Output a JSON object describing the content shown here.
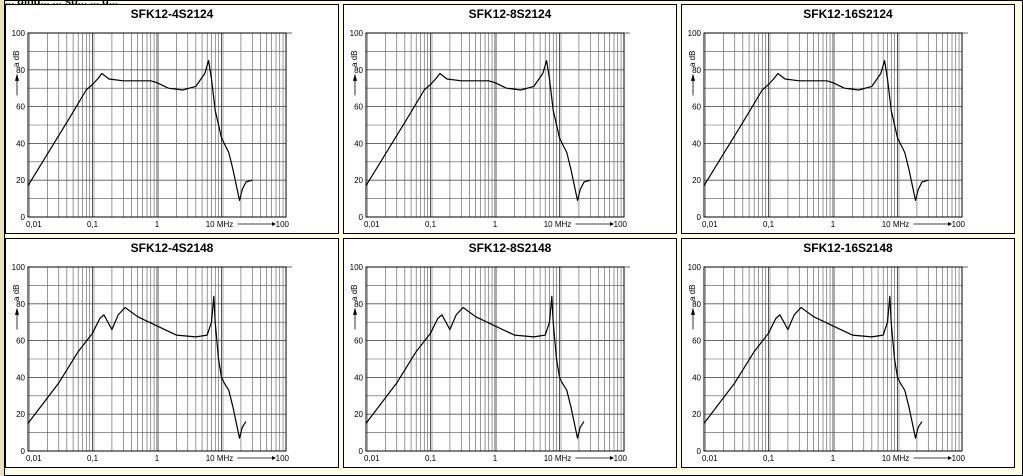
{
  "header_text": "... ging... ... sp... ... g...",
  "chart_data": [
    {
      "type": "line",
      "title": "SFK12-4S2124",
      "ylabel": "a dB",
      "xlabel": "MHz",
      "x_scale": "log",
      "xlim": [
        0.01,
        100
      ],
      "ylim": [
        0,
        100
      ],
      "x_ticks": [
        "0,01",
        "0,1",
        "1",
        "10 MHz",
        "100"
      ],
      "y_ticks": [
        "0",
        "20",
        "40",
        "60",
        "80",
        "100"
      ],
      "series": [
        {
          "x": [
            0.01,
            0.05,
            0.08,
            0.1,
            0.12,
            0.14,
            0.18,
            0.3,
            0.8,
            1.0,
            1.5,
            2.5,
            4.0,
            5.5,
            6.3,
            7.0,
            8.0,
            10.0,
            11.0,
            13.0,
            15.0,
            19.0,
            21.0,
            24.0,
            30.0
          ],
          "y": [
            17,
            57,
            69,
            72,
            75,
            78,
            75,
            74,
            74,
            73,
            70,
            69,
            71,
            78,
            85,
            75,
            58,
            43,
            40,
            35,
            26,
            9,
            15,
            19,
            20
          ]
        }
      ]
    },
    {
      "type": "line",
      "title": "SFK12-8S2124",
      "ylabel": "a dB",
      "xlabel": "MHz",
      "x_scale": "log",
      "xlim": [
        0.01,
        100
      ],
      "ylim": [
        0,
        100
      ],
      "x_ticks": [
        "0,01",
        "0,1",
        "1",
        "10 MHz",
        "100"
      ],
      "y_ticks": [
        "0",
        "20",
        "40",
        "60",
        "80",
        "100"
      ],
      "series": [
        {
          "x": [
            0.01,
            0.05,
            0.08,
            0.1,
            0.12,
            0.14,
            0.18,
            0.3,
            0.8,
            1.0,
            1.5,
            2.5,
            4.0,
            5.5,
            6.3,
            7.0,
            8.0,
            10.0,
            11.0,
            13.0,
            15.0,
            19.0,
            21.0,
            24.0,
            30.0
          ],
          "y": [
            17,
            57,
            69,
            72,
            75,
            78,
            75,
            74,
            74,
            73,
            70,
            69,
            71,
            78,
            85,
            75,
            58,
            43,
            40,
            35,
            26,
            9,
            15,
            19,
            20
          ]
        }
      ]
    },
    {
      "type": "line",
      "title": "SFK12-16S2124",
      "ylabel": "a dB",
      "xlabel": "MHz",
      "x_scale": "log",
      "xlim": [
        0.01,
        100
      ],
      "ylim": [
        0,
        100
      ],
      "x_ticks": [
        "0,01",
        "0,1",
        "1",
        "10 MHz",
        "100"
      ],
      "y_ticks": [
        "0",
        "20",
        "40",
        "60",
        "80",
        "100"
      ],
      "series": [
        {
          "x": [
            0.01,
            0.05,
            0.08,
            0.1,
            0.12,
            0.14,
            0.18,
            0.3,
            0.8,
            1.0,
            1.5,
            2.5,
            4.0,
            5.5,
            6.3,
            7.0,
            8.0,
            10.0,
            11.0,
            13.0,
            15.0,
            19.0,
            21.0,
            24.0,
            30.0
          ],
          "y": [
            17,
            57,
            69,
            72,
            75,
            78,
            75,
            74,
            74,
            73,
            70,
            69,
            71,
            78,
            85,
            75,
            58,
            43,
            40,
            35,
            26,
            9,
            15,
            19,
            20
          ]
        }
      ]
    },
    {
      "type": "line",
      "title": "SFK12-4S2148",
      "ylabel": "a dB",
      "xlabel": "MHz",
      "x_scale": "log",
      "xlim": [
        0.01,
        100
      ],
      "ylim": [
        0,
        100
      ],
      "x_ticks": [
        "0,01",
        "0,1",
        "1",
        "10 MHz",
        "100"
      ],
      "y_ticks": [
        "0",
        "20",
        "40",
        "60",
        "80",
        "100"
      ],
      "series": [
        {
          "x": [
            0.01,
            0.03,
            0.06,
            0.1,
            0.13,
            0.15,
            0.2,
            0.25,
            0.32,
            0.5,
            1.0,
            2.0,
            4.0,
            6.0,
            7.0,
            7.6,
            8.0,
            9.0,
            10.0,
            11.0,
            13.0,
            15.0,
            19.0,
            21.0,
            24.0
          ],
          "y": [
            15,
            37,
            54,
            64,
            72,
            74,
            66,
            74,
            78,
            73,
            68,
            63,
            62,
            63,
            70,
            84,
            70,
            50,
            40,
            37,
            33,
            24,
            7,
            13,
            16
          ]
        }
      ]
    },
    {
      "type": "line",
      "title": "SFK12-8S2148",
      "ylabel": "a dB",
      "xlabel": "MHz",
      "x_scale": "log",
      "xlim": [
        0.01,
        100
      ],
      "ylim": [
        0,
        100
      ],
      "x_ticks": [
        "0,01",
        "0,1",
        "1",
        "10 MHz",
        "100"
      ],
      "y_ticks": [
        "0",
        "20",
        "40",
        "60",
        "80",
        "100"
      ],
      "series": [
        {
          "x": [
            0.01,
            0.03,
            0.06,
            0.1,
            0.13,
            0.15,
            0.2,
            0.25,
            0.32,
            0.5,
            1.0,
            2.0,
            4.0,
            6.0,
            7.0,
            7.6,
            8.0,
            9.0,
            10.0,
            11.0,
            13.0,
            15.0,
            19.0,
            21.0,
            24.0
          ],
          "y": [
            15,
            37,
            54,
            64,
            72,
            74,
            66,
            74,
            78,
            73,
            68,
            63,
            62,
            63,
            70,
            84,
            70,
            50,
            40,
            37,
            33,
            24,
            7,
            13,
            16
          ]
        }
      ]
    },
    {
      "type": "line",
      "title": "SFK12-16S2148",
      "ylabel": "a dB",
      "xlabel": "MHz",
      "x_scale": "log",
      "xlim": [
        0.01,
        100
      ],
      "ylim": [
        0,
        100
      ],
      "x_ticks": [
        "0,01",
        "0,1",
        "1",
        "10 MHz",
        "100"
      ],
      "y_ticks": [
        "0",
        "20",
        "40",
        "60",
        "80",
        "100"
      ],
      "series": [
        {
          "x": [
            0.01,
            0.03,
            0.06,
            0.1,
            0.13,
            0.15,
            0.2,
            0.25,
            0.32,
            0.5,
            1.0,
            2.0,
            4.0,
            6.0,
            7.0,
            7.6,
            8.0,
            9.0,
            10.0,
            11.0,
            13.0,
            15.0,
            19.0,
            21.0,
            24.0
          ],
          "y": [
            15,
            37,
            54,
            64,
            72,
            74,
            66,
            74,
            78,
            73,
            68,
            63,
            62,
            63,
            70,
            84,
            70,
            50,
            40,
            37,
            33,
            24,
            7,
            13,
            16
          ]
        }
      ]
    }
  ],
  "colors": {
    "background": "#fffde6",
    "grid": "#555555",
    "curve": "#000000"
  }
}
